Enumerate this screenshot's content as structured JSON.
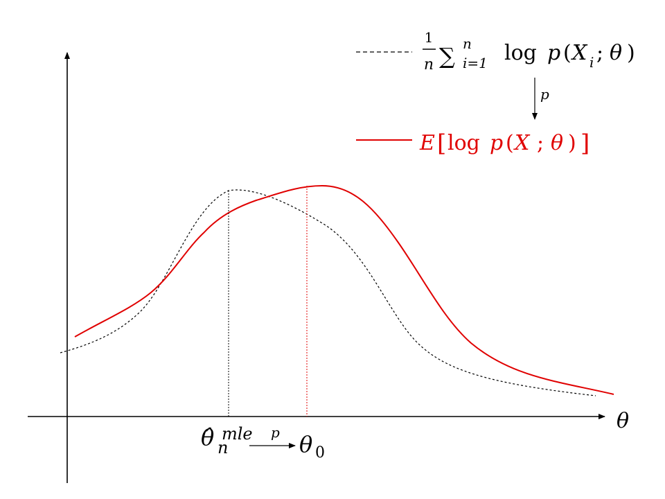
{
  "colors": {
    "axis": "#000000",
    "empirical": "#000000",
    "expected": "#e00000",
    "theta0_guide": "#e00000",
    "mle_guide": "#000000",
    "background": "#ffffff"
  },
  "axes": {
    "x_label": "θ"
  },
  "legend": {
    "empirical": {
      "frac_num": "1",
      "frac_den": "n",
      "sum_symbol": "∑",
      "sum_upper": "n",
      "sum_lower": "i=1",
      "log": "log",
      "expr_p": "p",
      "expr_open": "(",
      "expr_X": "X",
      "expr_sub": "i",
      "expr_semi": ";",
      "expr_theta": "θ",
      "expr_close": ")"
    },
    "convergence_label": "p",
    "expected": {
      "E": "E",
      "open_bracket": "[",
      "log": "log",
      "expr_p": "p",
      "expr_open": "(",
      "expr_X": "X",
      "expr_semi": ";",
      "expr_theta": "θ",
      "expr_close": ")",
      "close_bracket": "]"
    }
  },
  "annotations": {
    "mle_hat": "θ̂",
    "mle_base": "θ",
    "mle_sub": "n",
    "mle_sup": "mle",
    "arrow_label": "p",
    "theta0_base": "θ",
    "theta0_sub": "0"
  }
}
